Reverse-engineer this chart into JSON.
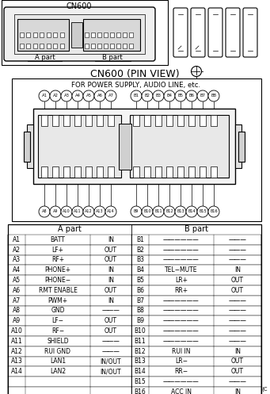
{
  "title": "CN600 (PIN VIEW)",
  "subtitle": "FOR POWER SUPPLY, AUDIO LINE, etc.",
  "a_part_label": "A part",
  "b_part_label": "B part",
  "table_a": [
    [
      "A1",
      "BATT",
      "IN"
    ],
    [
      "A2",
      "LF+",
      "OUT"
    ],
    [
      "A3",
      "RF+",
      "OUT"
    ],
    [
      "A4",
      "PHONE+",
      "IN"
    ],
    [
      "A5",
      "PHONE−",
      "IN"
    ],
    [
      "A6",
      "RMT ENABLE",
      "OUT"
    ],
    [
      "A7",
      "PWM+",
      "IN"
    ],
    [
      "A8",
      "GND",
      "———"
    ],
    [
      "A9",
      "LF−",
      "OUT"
    ],
    [
      "A10",
      "RF−",
      "OUT"
    ],
    [
      "A11",
      "SHIELD",
      "———"
    ],
    [
      "A12",
      "RUI GND",
      "———"
    ],
    [
      "A13",
      "LAN1",
      "IN/OUT"
    ],
    [
      "A14",
      "LAN2",
      "IN/OUT"
    ]
  ],
  "table_b": [
    [
      "B1",
      "——————",
      "———"
    ],
    [
      "B2",
      "——————",
      "———"
    ],
    [
      "B3",
      "——————",
      "———"
    ],
    [
      "B4",
      "TEL−MUTE",
      "IN"
    ],
    [
      "B5",
      "LR+",
      "OUT"
    ],
    [
      "B6",
      "RR+",
      "OUT"
    ],
    [
      "B7",
      "——————",
      "———"
    ],
    [
      "B8",
      "——————",
      "———"
    ],
    [
      "B9",
      "——————",
      "———"
    ],
    [
      "B10",
      "——————",
      "———"
    ],
    [
      "B11",
      "——————",
      "———"
    ],
    [
      "B12",
      "RUI IN",
      "IN"
    ],
    [
      "B13",
      "LR−",
      "OUT"
    ],
    [
      "B14",
      "RR−",
      "OUT"
    ],
    [
      "B15",
      "——————",
      "———"
    ],
    [
      "B16",
      "ACC IN",
      "IN"
    ]
  ],
  "bg_color": "#ffffff",
  "text_color": "#000000",
  "font_size": 5.5,
  "title_font_size": 9
}
